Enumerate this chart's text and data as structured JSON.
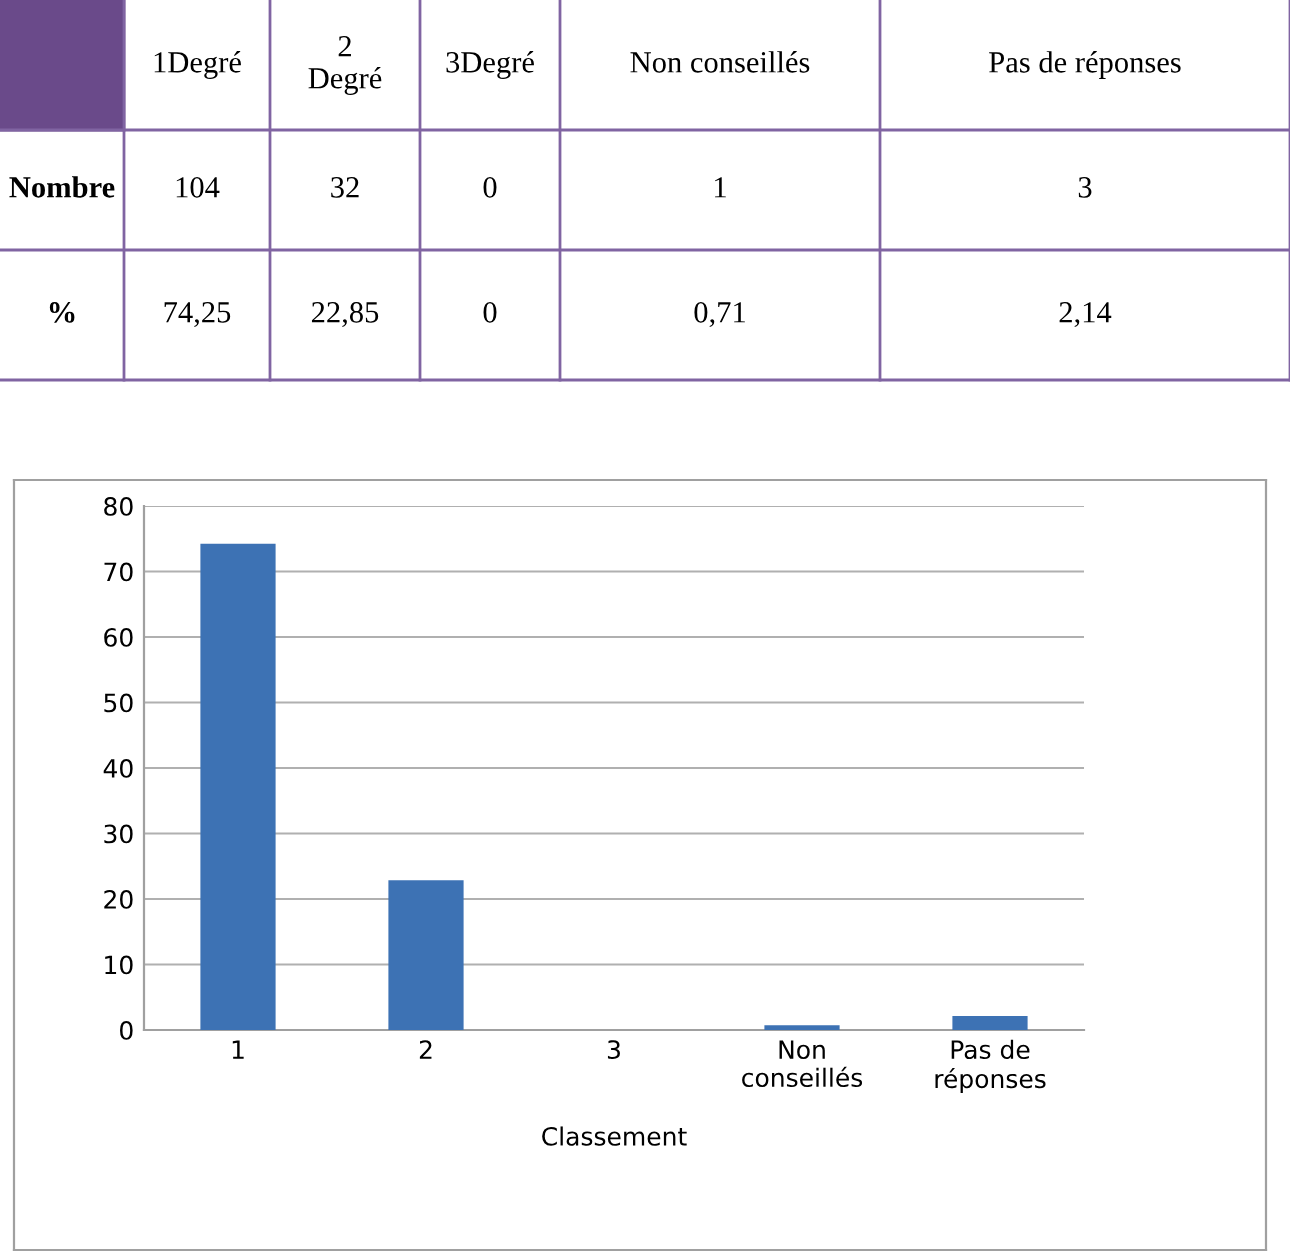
{
  "chart_data": [
    {
      "type": "other",
      "annotations": [
        "1Degré",
        "2\nDegré",
        "3Degré",
        "Non conseillés",
        "Pas de réponses",
        "Nombre",
        "104",
        "32",
        "0",
        "1",
        "3",
        "%",
        "74,25",
        "22,85",
        "0",
        "0,71",
        "2,14"
      ]
    },
    {
      "type": "bar",
      "categories": [
        "1",
        "2",
        "3",
        "Non\nconseillés",
        "Pas de\nréponses"
      ],
      "values": [
        74.25,
        22.85,
        0,
        0.71,
        2.14
      ],
      "color": "#3d72b4",
      "xlabel": "Classement",
      "ylim": [
        0,
        80
      ],
      "yticks": [
        0,
        10,
        20,
        30,
        40,
        50,
        60,
        70,
        80
      ],
      "grid": "y",
      "legend": false
    }
  ]
}
